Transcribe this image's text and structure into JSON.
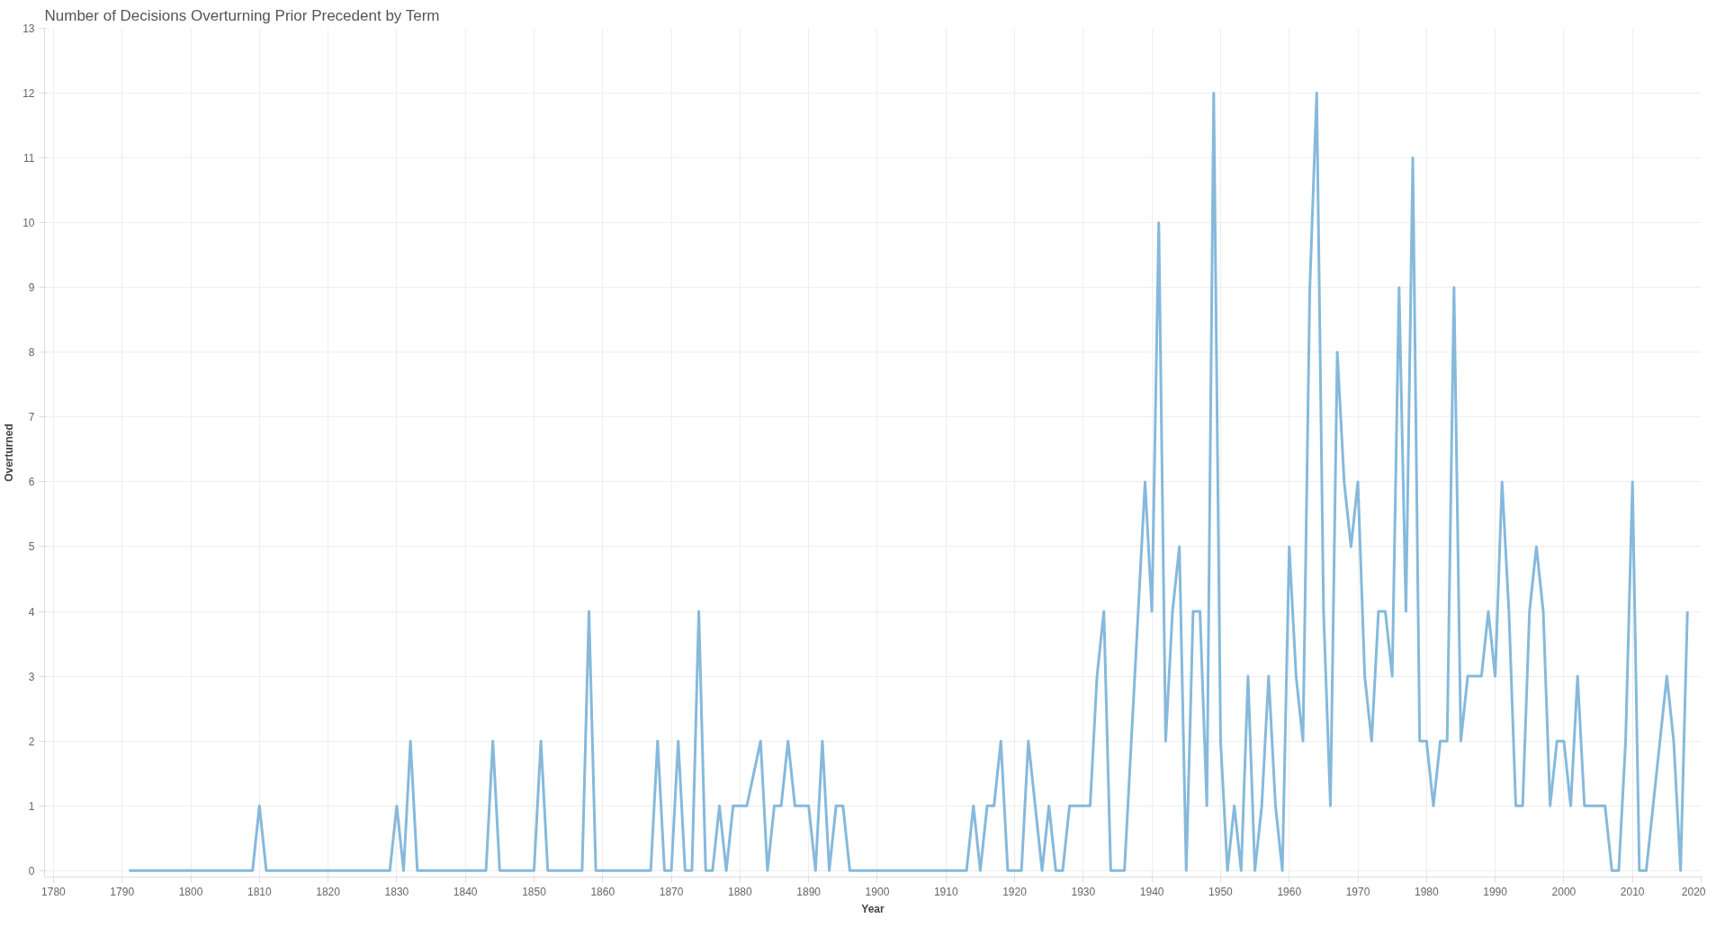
{
  "chart_data": {
    "type": "line",
    "title": "Number of Decisions Overturning Prior Precedent by Term",
    "xlabel": "Year",
    "ylabel": "Overturned",
    "x": [
      1791,
      1792,
      1793,
      1794,
      1795,
      1796,
      1797,
      1798,
      1799,
      1800,
      1801,
      1802,
      1803,
      1804,
      1805,
      1806,
      1807,
      1808,
      1809,
      1810,
      1811,
      1812,
      1813,
      1814,
      1815,
      1816,
      1817,
      1818,
      1819,
      1820,
      1821,
      1822,
      1823,
      1824,
      1825,
      1826,
      1827,
      1828,
      1829,
      1830,
      1831,
      1832,
      1833,
      1834,
      1835,
      1836,
      1837,
      1838,
      1839,
      1840,
      1841,
      1842,
      1843,
      1844,
      1845,
      1846,
      1847,
      1848,
      1849,
      1850,
      1851,
      1852,
      1853,
      1854,
      1855,
      1856,
      1857,
      1858,
      1859,
      1860,
      1861,
      1862,
      1863,
      1864,
      1865,
      1866,
      1867,
      1868,
      1869,
      1870,
      1871,
      1872,
      1873,
      1874,
      1875,
      1876,
      1877,
      1878,
      1879,
      1880,
      1881,
      1883,
      1884,
      1885,
      1886,
      1887,
      1888,
      1889,
      1890,
      1891,
      1892,
      1893,
      1894,
      1895,
      1896,
      1897,
      1898,
      1899,
      1900,
      1901,
      1902,
      1903,
      1904,
      1905,
      1906,
      1907,
      1908,
      1909,
      1910,
      1911,
      1912,
      1913,
      1914,
      1915,
      1916,
      1917,
      1918,
      1919,
      1920,
      1921,
      1922,
      1923,
      1924,
      1925,
      1926,
      1927,
      1928,
      1929,
      1930,
      1931,
      1932,
      1933,
      1934,
      1935,
      1936,
      1937,
      1938,
      1939,
      1940,
      1941,
      1942,
      1943,
      1944,
      1945,
      1946,
      1947,
      1948,
      1949,
      1950,
      1951,
      1952,
      1953,
      1954,
      1955,
      1956,
      1957,
      1958,
      1959,
      1960,
      1961,
      1962,
      1963,
      1964,
      1965,
      1966,
      1967,
      1968,
      1969,
      1970,
      1971,
      1972,
      1973,
      1974,
      1975,
      1976,
      1977,
      1978,
      1979,
      1980,
      1981,
      1982,
      1983,
      1984,
      1985,
      1986,
      1987,
      1988,
      1989,
      1990,
      1991,
      1992,
      1993,
      1994,
      1995,
      1996,
      1997,
      1998,
      1999,
      2000,
      2001,
      2002,
      2003,
      2004,
      2005,
      2006,
      2007,
      2008,
      2009,
      2010,
      2011,
      2012,
      2013,
      2014,
      2015,
      2016,
      2017,
      2018
    ],
    "series": [
      {
        "color": "#86b9dc",
        "values": [
          0,
          0,
          0,
          0,
          0,
          0,
          0,
          0,
          0,
          0,
          0,
          0,
          0,
          0,
          0,
          0,
          0,
          0,
          0,
          1,
          0,
          0,
          0,
          0,
          0,
          0,
          0,
          0,
          0,
          0,
          0,
          0,
          0,
          0,
          0,
          0,
          0,
          0,
          0,
          1,
          0,
          2,
          0,
          0,
          0,
          0,
          0,
          0,
          0,
          0,
          0,
          0,
          0,
          2,
          0,
          0,
          0,
          0,
          0,
          0,
          2,
          0,
          0,
          0,
          0,
          0,
          0,
          4,
          0,
          0,
          0,
          0,
          0,
          0,
          0,
          0,
          0,
          2,
          0,
          0,
          2,
          0,
          0,
          4,
          0,
          0,
          1,
          0,
          1,
          1,
          1,
          2,
          0,
          1,
          1,
          2,
          1,
          1,
          1,
          0,
          2,
          0,
          1,
          1,
          0,
          0,
          0,
          0,
          0,
          0,
          0,
          0,
          0,
          0,
          0,
          0,
          0,
          0,
          0,
          0,
          0,
          0,
          1,
          0,
          1,
          1,
          2,
          0,
          0,
          0,
          2,
          1,
          0,
          1,
          0,
          0,
          1,
          1,
          1,
          1,
          3,
          4,
          0,
          0,
          0,
          2,
          4,
          6,
          4,
          10,
          2,
          4,
          5,
          0,
          4,
          4,
          1,
          12,
          2,
          0,
          1,
          0,
          3,
          0,
          1,
          3,
          1,
          0,
          5,
          3,
          2,
          9,
          12,
          4,
          1,
          8,
          6,
          5,
          6,
          3,
          2,
          4,
          4,
          3,
          9,
          4,
          11,
          2,
          2,
          1,
          2,
          2,
          9,
          2,
          3,
          3,
          3,
          4,
          3,
          6,
          4,
          1,
          1,
          4,
          5,
          4,
          1,
          2,
          2,
          1,
          3,
          1,
          1,
          1,
          1,
          0,
          0,
          2,
          6,
          0,
          0,
          1,
          2,
          3,
          2,
          0,
          4
        ]
      }
    ],
    "xlim": [
      1778.7,
      2020
    ],
    "xticks": [
      1780,
      1790,
      1800,
      1810,
      1820,
      1830,
      1840,
      1850,
      1860,
      1870,
      1880,
      1890,
      1900,
      1910,
      1920,
      1930,
      1940,
      1950,
      1960,
      1970,
      1980,
      1990,
      2000,
      2010,
      2020
    ],
    "ylim": [
      -0.1,
      13
    ],
    "yticks": [
      0,
      1,
      2,
      3,
      4,
      5,
      6,
      7,
      8,
      9,
      10,
      11,
      12,
      13
    ],
    "grid": true,
    "marker": "none",
    "line_style": "solid"
  }
}
